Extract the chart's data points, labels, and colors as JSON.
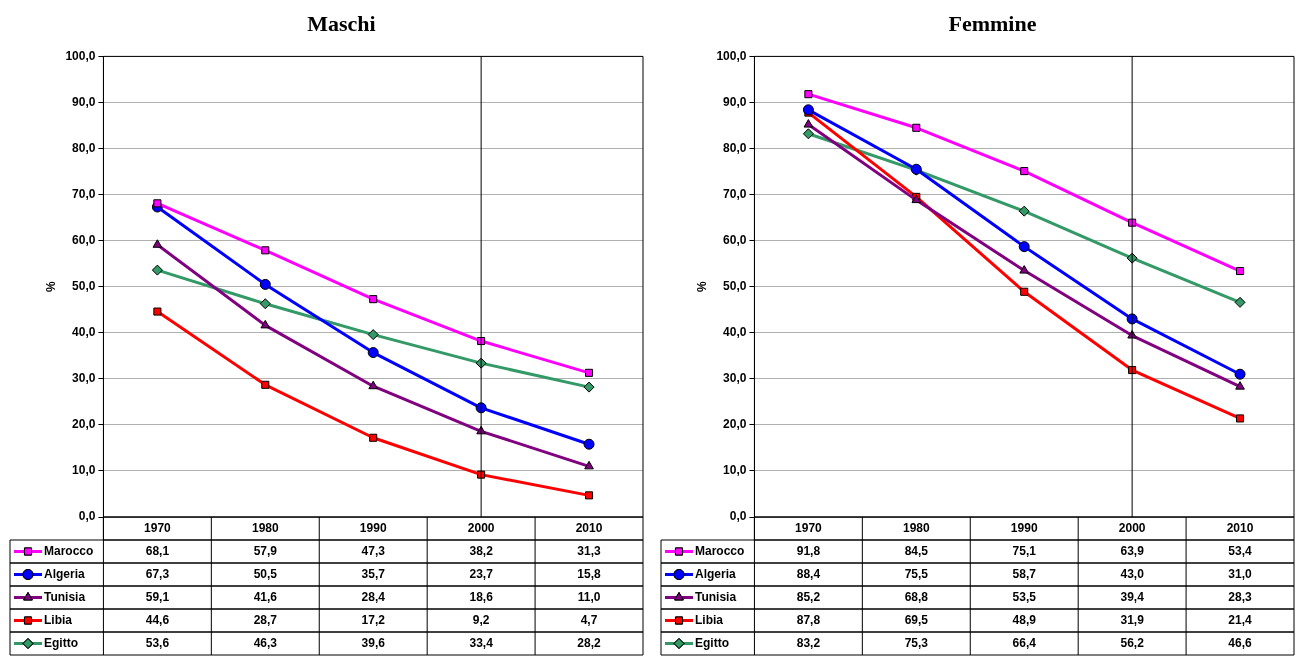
{
  "chart_data": [
    {
      "type": "line",
      "title": "Maschi",
      "ylabel": "%",
      "categories": [
        "1970",
        "1980",
        "1990",
        "2000",
        "2010"
      ],
      "ylim": [
        0,
        100
      ],
      "yticks": [
        {
          "value": 0,
          "label": "0,0"
        },
        {
          "value": 10,
          "label": "10,0"
        },
        {
          "value": 20,
          "label": "20,0"
        },
        {
          "value": 30,
          "label": "30,0"
        },
        {
          "value": 40,
          "label": "40,0"
        },
        {
          "value": 50,
          "label": "50,0"
        },
        {
          "value": 60,
          "label": "60,0"
        },
        {
          "value": 70,
          "label": "70,0"
        },
        {
          "value": 80,
          "label": "80,0"
        },
        {
          "value": 90,
          "label": "90,0"
        },
        {
          "value": 100,
          "label": "100,0"
        }
      ],
      "grid": "y",
      "legend": "bottom",
      "ref_lines": [
        {
          "axis": "x",
          "value": "2000",
          "color": "#000000"
        }
      ],
      "series": [
        {
          "name": "Marocco",
          "color": "#ff00ff",
          "marker": "square",
          "values": [
            68.1,
            57.9,
            47.3,
            38.2,
            31.3
          ],
          "value_labels": [
            "68,1",
            "57,9",
            "47,3",
            "38,2",
            "31,3"
          ]
        },
        {
          "name": "Algeria",
          "color": "#0000ff",
          "marker": "circle",
          "values": [
            67.3,
            50.5,
            35.7,
            23.7,
            15.8
          ],
          "value_labels": [
            "67,3",
            "50,5",
            "35,7",
            "23,7",
            "15,8"
          ]
        },
        {
          "name": "Tunisia",
          "color": "#800080",
          "marker": "triangle",
          "values": [
            59.1,
            41.6,
            28.4,
            18.6,
            11.0
          ],
          "value_labels": [
            "59,1",
            "41,6",
            "28,4",
            "18,6",
            "11,0"
          ]
        },
        {
          "name": "Libia",
          "color": "#ff0000",
          "marker": "square",
          "values": [
            44.6,
            28.7,
            17.2,
            9.2,
            4.7
          ],
          "value_labels": [
            "44,6",
            "28,7",
            "17,2",
            "9,2",
            "4,7"
          ]
        },
        {
          "name": "Egitto",
          "color": "#339966",
          "marker": "diamond",
          "values": [
            53.6,
            46.3,
            39.6,
            33.4,
            28.2
          ],
          "value_labels": [
            "53,6",
            "46,3",
            "39,6",
            "33,4",
            "28,2"
          ]
        }
      ]
    },
    {
      "type": "line",
      "title": "Femmine",
      "ylabel": "%",
      "categories": [
        "1970",
        "1980",
        "1990",
        "2000",
        "2010"
      ],
      "ylim": [
        0,
        100
      ],
      "yticks": [
        {
          "value": 0,
          "label": "0,0"
        },
        {
          "value": 10,
          "label": "10,0"
        },
        {
          "value": 20,
          "label": "20,0"
        },
        {
          "value": 30,
          "label": "30,0"
        },
        {
          "value": 40,
          "label": "40,0"
        },
        {
          "value": 50,
          "label": "50,0"
        },
        {
          "value": 60,
          "label": "60,0"
        },
        {
          "value": 70,
          "label": "70,0"
        },
        {
          "value": 80,
          "label": "80,0"
        },
        {
          "value": 90,
          "label": "90,0"
        },
        {
          "value": 100,
          "label": "100,0"
        }
      ],
      "grid": "y",
      "legend": "bottom",
      "ref_lines": [
        {
          "axis": "x",
          "value": "2000",
          "color": "#000000"
        }
      ],
      "series": [
        {
          "name": "Marocco",
          "color": "#ff00ff",
          "marker": "square",
          "values": [
            91.8,
            84.5,
            75.1,
            63.9,
            53.4
          ],
          "value_labels": [
            "91,8",
            "84,5",
            "75,1",
            "63,9",
            "53,4"
          ]
        },
        {
          "name": "Algeria",
          "color": "#0000ff",
          "marker": "circle",
          "values": [
            88.4,
            75.5,
            58.7,
            43.0,
            31.0
          ],
          "value_labels": [
            "88,4",
            "75,5",
            "58,7",
            "43,0",
            "31,0"
          ]
        },
        {
          "name": "Tunisia",
          "color": "#800080",
          "marker": "triangle",
          "values": [
            85.2,
            68.8,
            53.5,
            39.4,
            28.3
          ],
          "value_labels": [
            "85,2",
            "68,8",
            "53,5",
            "39,4",
            "28,3"
          ]
        },
        {
          "name": "Libia",
          "color": "#ff0000",
          "marker": "square",
          "values": [
            87.8,
            69.5,
            48.9,
            31.9,
            21.4
          ],
          "value_labels": [
            "87,8",
            "69,5",
            "48,9",
            "31,9",
            "21,4"
          ]
        },
        {
          "name": "Egitto",
          "color": "#339966",
          "marker": "diamond",
          "values": [
            83.2,
            75.3,
            66.4,
            56.2,
            46.6
          ],
          "value_labels": [
            "83,2",
            "75,3",
            "66,4",
            "56,2",
            "46,6"
          ]
        }
      ]
    }
  ]
}
